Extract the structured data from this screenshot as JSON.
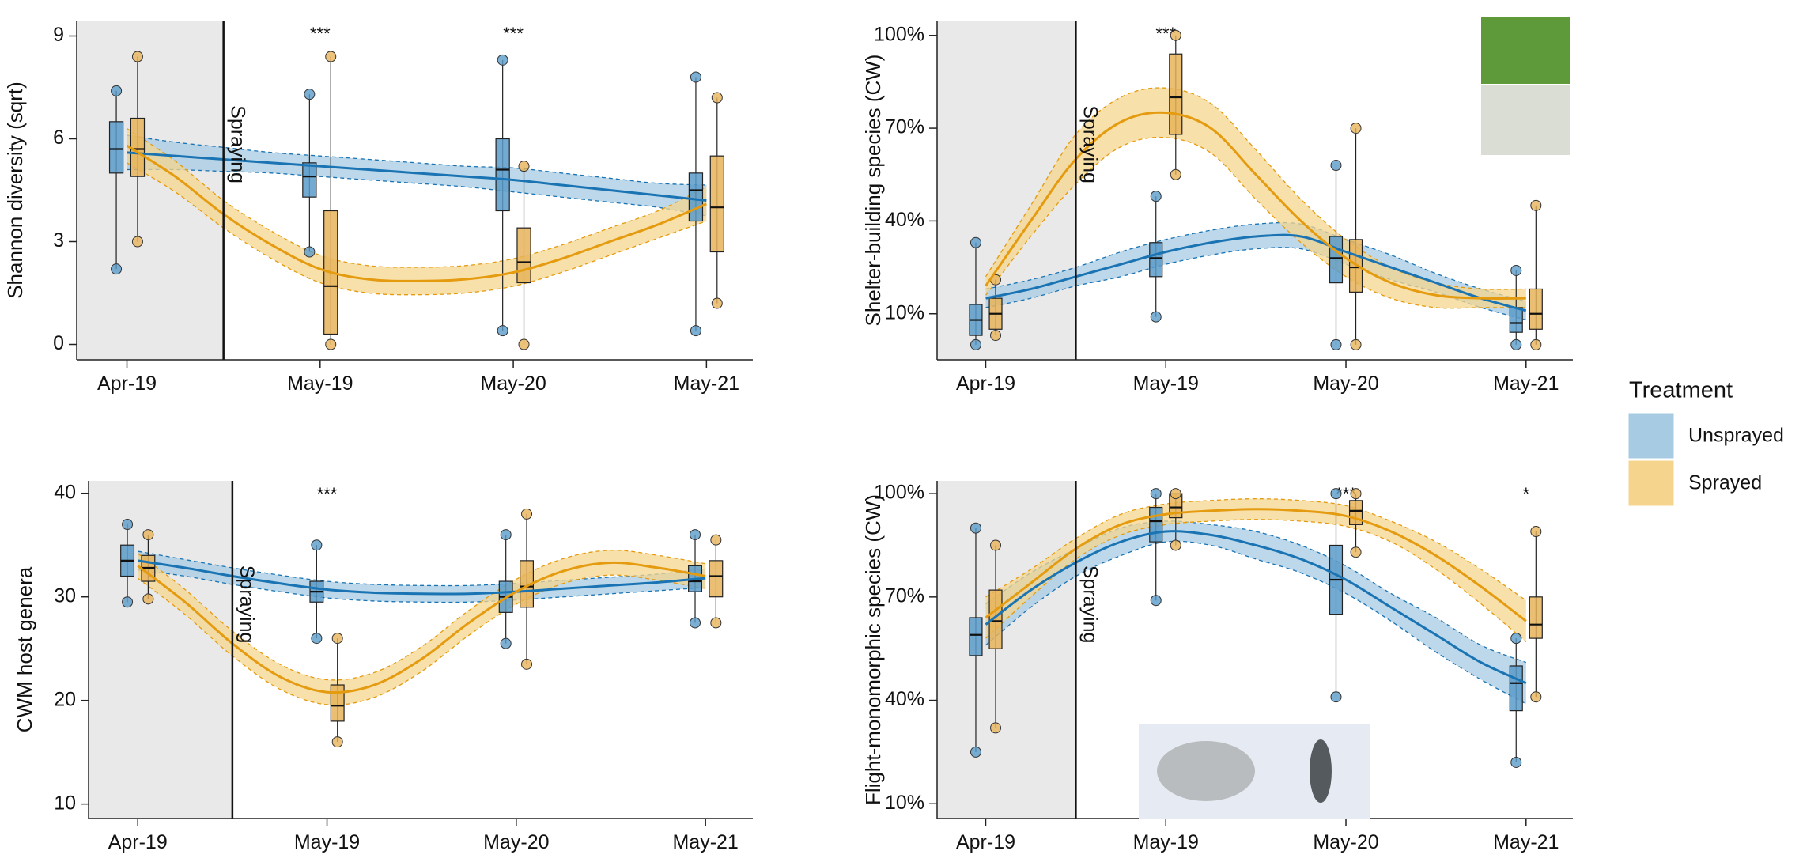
{
  "chart_data": [
    {
      "type": "line",
      "y_label": "Shannon diversity (sqrt)",
      "xlim": [
        -0.26,
        3.24
      ],
      "ylim": [
        -0.45,
        9.45
      ],
      "xticks": [
        {
          "value": 0,
          "label": "Apr-19"
        },
        {
          "value": 1,
          "label": "May-19"
        },
        {
          "value": 2,
          "label": "May-20"
        },
        {
          "value": 3,
          "label": "May-21"
        }
      ],
      "yticks": [
        0,
        3,
        6,
        9
      ],
      "spray": {
        "x": 0.5,
        "label": "Spraying"
      },
      "significance": [
        null,
        "***",
        "***",
        null
      ],
      "legend_title": "Treatment",
      "legend_position": "right",
      "x": [
        0,
        0.25,
        0.5,
        0.75,
        1,
        1.25,
        1.5,
        1.75,
        2,
        2.25,
        2.5,
        2.75,
        3
      ],
      "series": [
        {
          "name": "Unsprayed",
          "color": "#1a74b3",
          "fill": "#a6cbe3",
          "point": "#5a9bc9",
          "values": [
            5.6,
            5.5,
            5.4,
            5.3,
            5.2,
            5.1,
            5.0,
            4.9,
            4.8,
            4.65,
            4.5,
            4.35,
            4.2
          ],
          "lower": [
            5.1,
            5.1,
            5.05,
            5.0,
            4.9,
            4.8,
            4.7,
            4.6,
            4.45,
            4.3,
            4.15,
            4.0,
            3.75
          ],
          "upper": [
            6.1,
            5.9,
            5.75,
            5.6,
            5.5,
            5.4,
            5.3,
            5.2,
            5.15,
            5.0,
            4.85,
            4.7,
            4.65
          ],
          "boxes": [
            {
              "min": 2.2,
              "q1": 5.0,
              "median": 5.7,
              "q3": 6.5,
              "max": 7.4
            },
            {
              "min": 2.7,
              "q1": 4.3,
              "median": 4.9,
              "q3": 5.3,
              "max": 7.3
            },
            {
              "min": 0.4,
              "q1": 3.9,
              "median": 5.1,
              "q3": 6.0,
              "max": 8.3
            },
            {
              "min": 0.4,
              "q1": 3.6,
              "median": 4.5,
              "q3": 5.0,
              "max": 7.8
            }
          ]
        },
        {
          "name": "Sprayed",
          "color": "#e49b0f",
          "fill": "#f5d58e",
          "point": "#e8b45a",
          "values": [
            5.8,
            4.9,
            3.8,
            2.9,
            2.2,
            1.9,
            1.85,
            1.9,
            2.1,
            2.5,
            3.0,
            3.5,
            4.1
          ],
          "lower": [
            5.3,
            4.45,
            3.4,
            2.5,
            1.8,
            1.5,
            1.45,
            1.5,
            1.7,
            2.1,
            2.6,
            3.1,
            3.6
          ],
          "upper": [
            6.3,
            5.35,
            4.2,
            3.3,
            2.6,
            2.3,
            2.25,
            2.3,
            2.5,
            2.9,
            3.4,
            3.9,
            4.6
          ],
          "boxes": [
            {
              "min": 3.0,
              "q1": 4.9,
              "median": 5.7,
              "q3": 6.6,
              "max": 8.4
            },
            {
              "min": 0,
              "q1": 0.3,
              "median": 1.7,
              "q3": 3.9,
              "max": 8.4
            },
            {
              "min": 0,
              "q1": 1.8,
              "median": 2.4,
              "q3": 3.4,
              "max": 5.2
            },
            {
              "min": 1.2,
              "q1": 2.7,
              "median": 4.0,
              "q3": 5.5,
              "max": 7.2
            }
          ]
        }
      ]
    },
    {
      "type": "line",
      "y_label": "Shelter-building species (CW)",
      "xlim": [
        -0.27,
        3.26
      ],
      "ylim": [
        -4.9,
        104.8
      ],
      "xticks": [
        {
          "value": 0,
          "label": "Apr-19"
        },
        {
          "value": 1,
          "label": "May-19"
        },
        {
          "value": 2,
          "label": "May-20"
        },
        {
          "value": 3,
          "label": "May-21"
        }
      ],
      "yticks": [
        {
          "value": 10,
          "label": "10%"
        },
        {
          "value": 40,
          "label": "40%"
        },
        {
          "value": 70,
          "label": "70%"
        },
        {
          "value": 100,
          "label": "100%"
        }
      ],
      "spray": {
        "x": 0.5,
        "label": "Spraying"
      },
      "significance": [
        null,
        "***",
        null,
        null
      ],
      "x": [
        0,
        0.25,
        0.5,
        0.75,
        1,
        1.25,
        1.5,
        1.75,
        2,
        2.25,
        2.5,
        2.75,
        3
      ],
      "series": [
        {
          "name": "Unsprayed",
          "color": "#1a74b3",
          "fill": "#a6cbe3",
          "point": "#5a9bc9",
          "values": [
            15,
            18,
            22,
            26,
            30,
            33,
            35,
            35,
            30,
            25,
            20,
            15,
            11
          ],
          "lower": [
            12,
            15,
            19,
            22,
            26,
            29,
            31,
            31,
            26,
            21,
            17,
            12,
            8
          ],
          "upper": [
            18,
            21,
            25,
            30,
            34,
            37,
            39,
            39,
            34,
            29,
            23,
            18,
            14
          ],
          "boxes": [
            {
              "min": 0,
              "q1": 3,
              "median": 8,
              "q3": 13,
              "max": 33
            },
            {
              "min": 9,
              "q1": 22,
              "median": 28,
              "q3": 33,
              "max": 48
            },
            {
              "min": 0,
              "q1": 20,
              "median": 28,
              "q3": 35,
              "max": 58
            },
            {
              "min": 0,
              "q1": 4,
              "median": 7,
              "q3": 12,
              "max": 24
            }
          ]
        },
        {
          "name": "Sprayed",
          "color": "#e49b0f",
          "fill": "#f5d58e",
          "point": "#e8b45a",
          "values": [
            19,
            40,
            60,
            72,
            75,
            70,
            55,
            40,
            28,
            20,
            16,
            15,
            15
          ],
          "lower": [
            16,
            35,
            52,
            64,
            67,
            62,
            47,
            33,
            22,
            15,
            12,
            12,
            12
          ],
          "upper": [
            22,
            45,
            68,
            80,
            83,
            78,
            63,
            47,
            34,
            25,
            20,
            18,
            18
          ],
          "boxes": [
            {
              "min": 3,
              "q1": 5,
              "median": 10,
              "q3": 15,
              "max": 21
            },
            {
              "min": 55,
              "q1": 68,
              "median": 80,
              "q3": 94,
              "max": 100
            },
            {
              "min": 0,
              "q1": 17,
              "median": 25,
              "q3": 34,
              "max": 70
            },
            {
              "min": 0,
              "q1": 5,
              "median": 10,
              "q3": 18,
              "max": 45
            }
          ]
        }
      ]
    },
    {
      "type": "line",
      "y_label": "CWM host genera",
      "xlim": [
        -0.26,
        3.25
      ],
      "ylim": [
        8.6,
        41.2
      ],
      "xticks": [
        {
          "value": 0,
          "label": "Apr-19"
        },
        {
          "value": 1,
          "label": "May-19"
        },
        {
          "value": 2,
          "label": "May-20"
        },
        {
          "value": 3,
          "label": "May-21"
        }
      ],
      "yticks": [
        10,
        20,
        30,
        40
      ],
      "spray": {
        "x": 0.5,
        "label": "Spraying"
      },
      "significance": [
        null,
        "***",
        null,
        null
      ],
      "x": [
        0,
        0.25,
        0.5,
        0.75,
        1,
        1.25,
        1.5,
        1.75,
        2,
        2.25,
        2.5,
        2.75,
        3
      ],
      "series": [
        {
          "name": "Unsprayed",
          "color": "#1a74b3",
          "fill": "#a6cbe3",
          "point": "#5a9bc9",
          "values": [
            33.5,
            32.8,
            32.0,
            31.3,
            30.7,
            30.4,
            30.3,
            30.3,
            30.5,
            30.8,
            31.1,
            31.4,
            31.8
          ],
          "lower": [
            32.6,
            32.0,
            31.2,
            30.5,
            29.9,
            29.6,
            29.5,
            29.5,
            29.7,
            30.0,
            30.3,
            30.6,
            30.9
          ],
          "upper": [
            34.4,
            33.6,
            32.8,
            32.1,
            31.5,
            31.2,
            31.1,
            31.1,
            31.3,
            31.6,
            31.9,
            32.2,
            32.7
          ],
          "boxes": [
            {
              "min": 29.5,
              "q1": 32,
              "median": 33.5,
              "q3": 35,
              "max": 37
            },
            {
              "min": 26,
              "q1": 29.5,
              "median": 30.5,
              "q3": 31.5,
              "max": 35
            },
            {
              "min": 25.5,
              "q1": 28.5,
              "median": 30,
              "q3": 31.5,
              "max": 36
            },
            {
              "min": 27.5,
              "q1": 30.5,
              "median": 31.5,
              "q3": 33,
              "max": 36
            }
          ]
        },
        {
          "name": "Sprayed",
          "color": "#e49b0f",
          "fill": "#f5d58e",
          "point": "#e8b45a",
          "values": [
            33,
            29.5,
            25.5,
            22.3,
            20.8,
            21.5,
            24,
            27.5,
            30.5,
            32.5,
            33.3,
            32.8,
            32
          ],
          "lower": [
            31.8,
            28.3,
            24.3,
            21.1,
            19.6,
            20.3,
            22.8,
            26.3,
            29.3,
            31.3,
            32.1,
            31.6,
            30.8
          ],
          "upper": [
            34.2,
            30.7,
            26.7,
            23.5,
            22.0,
            22.7,
            25.2,
            28.7,
            31.7,
            33.7,
            34.5,
            34.0,
            33.2
          ],
          "boxes": [
            {
              "min": 29.8,
              "q1": 31.5,
              "median": 32.8,
              "q3": 34,
              "max": 36
            },
            {
              "min": 16,
              "q1": 18,
              "median": 19.5,
              "q3": 21.5,
              "max": 26
            },
            {
              "min": 23.5,
              "q1": 29,
              "median": 31,
              "q3": 33.5,
              "max": 38
            },
            {
              "min": 27.5,
              "q1": 30,
              "median": 32,
              "q3": 33.5,
              "max": 35.5
            }
          ]
        }
      ]
    },
    {
      "type": "line",
      "y_label": "Flight-monomorphic species (CW)",
      "xlim": [
        -0.27,
        3.26
      ],
      "ylim": [
        5.7,
        103.7
      ],
      "xticks": [
        {
          "value": 0,
          "label": "Apr-19"
        },
        {
          "value": 1,
          "label": "May-19"
        },
        {
          "value": 2,
          "label": "May-20"
        },
        {
          "value": 3,
          "label": "May-21"
        }
      ],
      "yticks": [
        {
          "value": 10,
          "label": "10%"
        },
        {
          "value": 40,
          "label": "40%"
        },
        {
          "value": 70,
          "label": "70%"
        },
        {
          "value": 100,
          "label": "100%"
        }
      ],
      "spray": {
        "x": 0.5,
        "label": "Spraying"
      },
      "significance": [
        null,
        null,
        "***",
        "*"
      ],
      "x": [
        0,
        0.25,
        0.5,
        0.75,
        1,
        1.25,
        1.5,
        1.75,
        2,
        2.25,
        2.5,
        2.75,
        3
      ],
      "series": [
        {
          "name": "Unsprayed",
          "color": "#1a74b3",
          "fill": "#a6cbe3",
          "point": "#5a9bc9",
          "values": [
            62,
            72,
            80,
            86,
            89,
            88,
            85,
            81,
            75,
            67,
            59,
            51,
            45
          ],
          "lower": [
            56,
            67,
            76,
            82,
            86,
            85,
            81,
            77,
            71,
            63,
            54,
            46,
            39
          ],
          "upper": [
            68,
            77,
            84,
            90,
            92,
            91,
            89,
            85,
            79,
            71,
            64,
            56,
            51
          ],
          "boxes": [
            {
              "min": 25,
              "q1": 53,
              "median": 59,
              "q3": 64,
              "max": 90
            },
            {
              "min": 69,
              "q1": 86,
              "median": 92,
              "q3": 96,
              "max": 100
            },
            {
              "min": 41,
              "q1": 65,
              "median": 75,
              "q3": 85,
              "max": 100
            },
            {
              "min": 22,
              "q1": 37,
              "median": 45,
              "q3": 50,
              "max": 58
            }
          ]
        },
        {
          "name": "Sprayed",
          "color": "#e49b0f",
          "fill": "#f5d58e",
          "point": "#e8b45a",
          "values": [
            64,
            74,
            84,
            91,
            94,
            95,
            95.5,
            95,
            93.5,
            89,
            82,
            73,
            63
          ],
          "lower": [
            58,
            70,
            81,
            88,
            91,
            92,
            92.5,
            92,
            90.5,
            86,
            78,
            68,
            57
          ],
          "upper": [
            70,
            78,
            87,
            94,
            97,
            98,
            98.5,
            98,
            96.5,
            92,
            86,
            78,
            69
          ],
          "boxes": [
            {
              "min": 32,
              "q1": 55,
              "median": 63,
              "q3": 72,
              "max": 85
            },
            {
              "min": 85,
              "q1": 93,
              "median": 96,
              "q3": 100,
              "max": 100
            },
            {
              "min": 83,
              "q1": 91,
              "median": 95,
              "q3": 98,
              "max": 100
            },
            {
              "min": 41,
              "q1": 58,
              "median": 62,
              "q3": 70,
              "max": 89
            }
          ]
        }
      ]
    }
  ]
}
